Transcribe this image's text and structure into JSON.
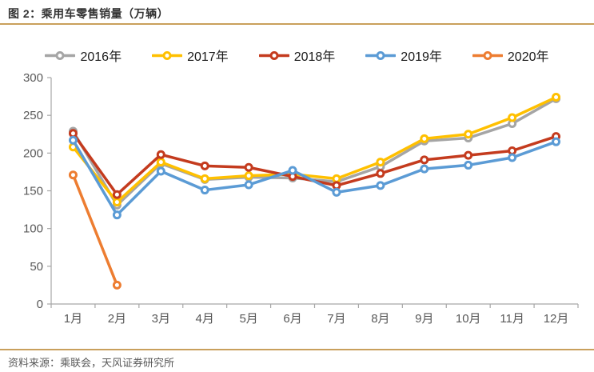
{
  "header": {
    "title": "图 2：乘用车零售销量（万辆）"
  },
  "footer": {
    "source": "资料来源：乘联会，天风证券研究所"
  },
  "colors": {
    "separator": "#c9a05c",
    "axis": "#a6a6a6",
    "tick_label": "#595959",
    "title_text": "#333333",
    "legend_text": "#1a1a1a",
    "background": "#ffffff"
  },
  "chart_data": {
    "type": "line",
    "title": "乘用车零售销量（万辆）",
    "xlabel": "",
    "ylabel": "",
    "ylim": [
      0,
      300
    ],
    "y_ticks": [
      0,
      50,
      100,
      150,
      200,
      250,
      300
    ],
    "grid": false,
    "legend_position": "top",
    "marker": "open-circle",
    "categories": [
      "1月",
      "2月",
      "3月",
      "4月",
      "5月",
      "6月",
      "7月",
      "8月",
      "9月",
      "10月",
      "11月",
      "12月"
    ],
    "series": [
      {
        "name": "2016年",
        "color": "#a5a5a5",
        "values": [
          229,
          131,
          186,
          165,
          168,
          167,
          162,
          182,
          216,
          220,
          239,
          272
        ]
      },
      {
        "name": "2017年",
        "color": "#ffc000",
        "values": [
          208,
          135,
          188,
          166,
          170,
          172,
          166,
          188,
          219,
          225,
          247,
          274
        ]
      },
      {
        "name": "2018年",
        "color": "#c43b1e",
        "values": [
          226,
          145,
          198,
          183,
          181,
          169,
          157,
          173,
          191,
          197,
          203,
          222
        ]
      },
      {
        "name": "2019年",
        "color": "#5b9bd5",
        "values": [
          217,
          118,
          176,
          151,
          158,
          177,
          148,
          157,
          179,
          184,
          194,
          215
        ]
      },
      {
        "name": "2020年",
        "color": "#ed7d31",
        "values": [
          171,
          25,
          null,
          null,
          null,
          null,
          null,
          null,
          null,
          null,
          null,
          null
        ]
      }
    ]
  }
}
